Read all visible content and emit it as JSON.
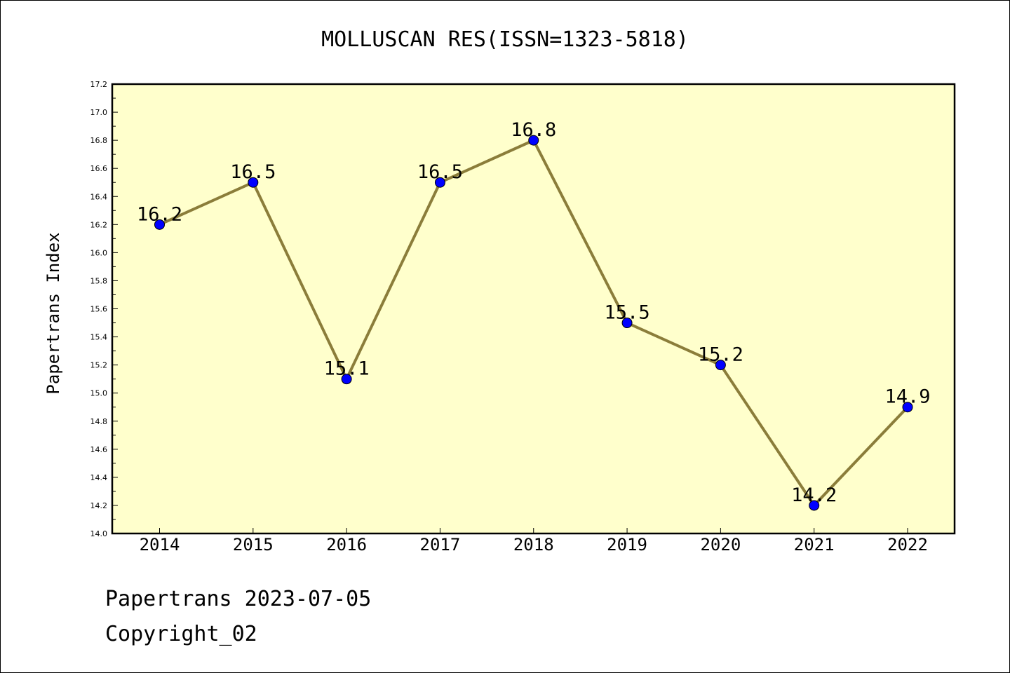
{
  "chart_data": {
    "type": "line",
    "title": "MOLLUSCAN RES(ISSN=1323-5818)",
    "xlabel": "",
    "ylabel": "Papertrans Index",
    "categories": [
      "2014",
      "2015",
      "2016",
      "2017",
      "2018",
      "2019",
      "2020",
      "2021",
      "2022"
    ],
    "values": [
      16.2,
      16.5,
      15.1,
      16.5,
      16.8,
      15.5,
      15.2,
      14.2,
      14.9
    ],
    "data_labels": [
      "16.2",
      "16.5",
      "15.1",
      "16.5",
      "16.8",
      "15.5",
      "15.2",
      "14.2",
      "14.9"
    ],
    "ylim": [
      14.0,
      17.2
    ],
    "yticks": [
      "14.0",
      "14.2",
      "14.4",
      "14.6",
      "14.8",
      "15.0",
      "15.2",
      "15.4",
      "15.6",
      "15.8",
      "16.0",
      "16.2",
      "16.4",
      "16.6",
      "16.8",
      "17.0",
      "17.2"
    ],
    "grid": false,
    "legend": "none",
    "colors": {
      "plot_background": "#ffffcc",
      "line": "#8b7d3a",
      "marker": "#0000ff"
    }
  },
  "footer": {
    "line1": "Papertrans 2023-07-05",
    "line2": "Copyright_02"
  }
}
